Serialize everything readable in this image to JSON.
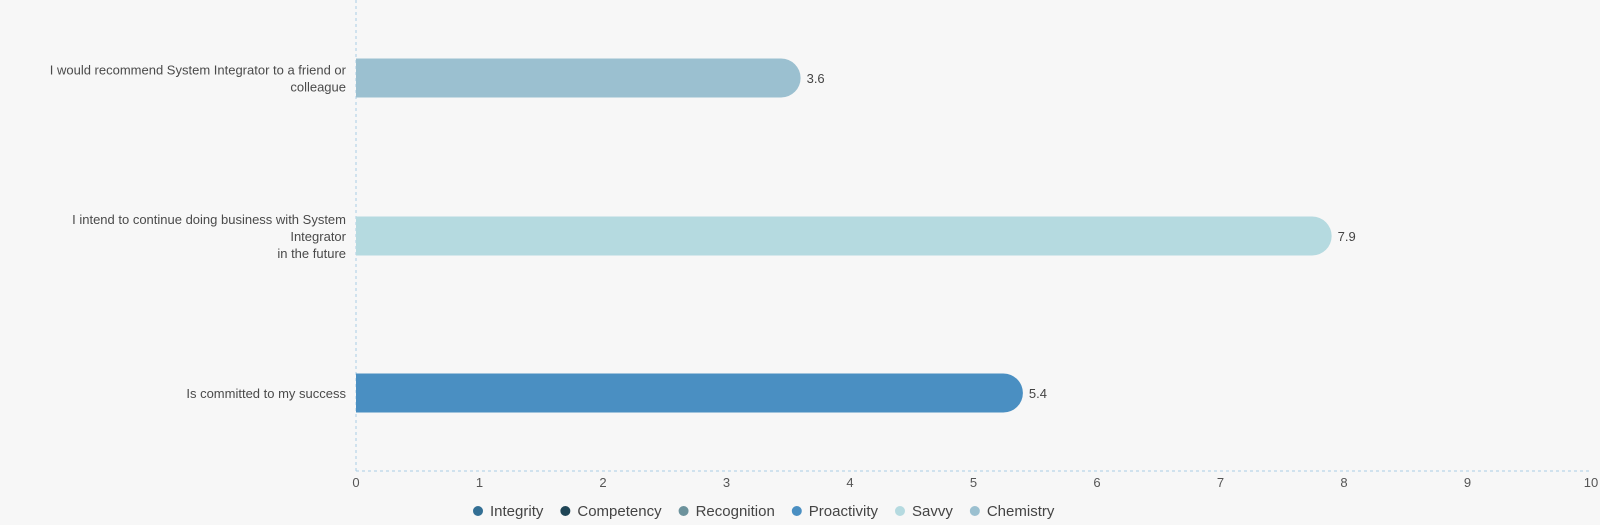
{
  "chart_data": {
    "type": "bar",
    "orientation": "horizontal",
    "title": "",
    "xlabel": "",
    "ylabel": "",
    "xlim": [
      0,
      10
    ],
    "x_ticks": [
      "0",
      "1",
      "2",
      "3",
      "4",
      "5",
      "6",
      "7",
      "8",
      "9",
      "10"
    ],
    "categories": [
      {
        "lines": [
          "I would recommend System Integrator to a friend or",
          "colleague"
        ]
      },
      {
        "lines": [
          "I intend to continue doing business with System",
          "Integrator",
          "in the future"
        ]
      },
      {
        "lines": [
          "Is committed to my success"
        ]
      }
    ],
    "values": [
      3.6,
      7.9,
      5.4
    ],
    "value_labels": [
      "3.6",
      "7.9",
      "5.4"
    ],
    "bar_series": [
      "Chemistry",
      "Savvy",
      "Proactivity"
    ],
    "legend": [
      {
        "name": "Integrity",
        "color": "#336f94"
      },
      {
        "name": "Competency",
        "color": "#1f4556"
      },
      {
        "name": "Recognition",
        "color": "#6c929c"
      },
      {
        "name": "Proactivity",
        "color": "#4a8fc2"
      },
      {
        "name": "Savvy",
        "color": "#b5dae0"
      },
      {
        "name": "Chemistry",
        "color": "#9bc0d0"
      }
    ],
    "legend_position": "bottom",
    "grid": false
  }
}
